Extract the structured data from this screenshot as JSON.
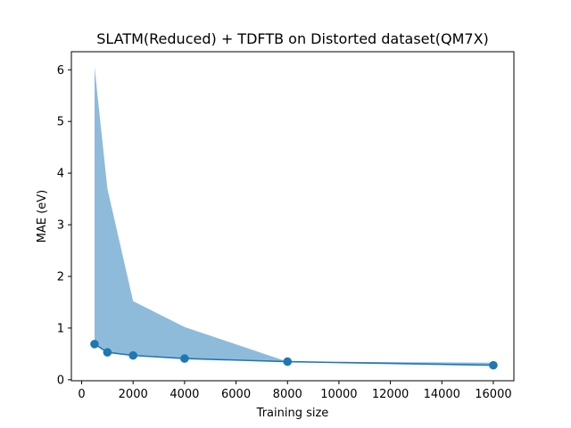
{
  "chart_data": {
    "type": "line",
    "title": "SLATM(Reduced) + TDFTB on Distorted dataset(QM7X)",
    "xlabel": "Training size",
    "ylabel": "MAE (eV)",
    "xlim": [
      -400,
      16800
    ],
    "ylim": [
      -0.02,
      6.35
    ],
    "xticks": [
      0,
      2000,
      4000,
      6000,
      8000,
      10000,
      12000,
      14000,
      16000
    ],
    "yticks": [
      0,
      1,
      2,
      3,
      4,
      5,
      6
    ],
    "grid": false,
    "legend": "none",
    "series": [
      {
        "x": [
          500,
          1000,
          2000,
          4000,
          8000,
          16000
        ],
        "values": [
          0.69,
          0.53,
          0.47,
          0.41,
          0.35,
          0.28
        ],
        "band_lower": [
          0.69,
          0.53,
          0.47,
          0.41,
          0.35,
          0.28
        ],
        "band_upper": [
          6.06,
          3.7,
          1.52,
          1.02,
          0.35,
          0.33
        ],
        "color": "#1f77b4",
        "band_color": "#8fbbda",
        "marker": "circle"
      }
    ]
  }
}
